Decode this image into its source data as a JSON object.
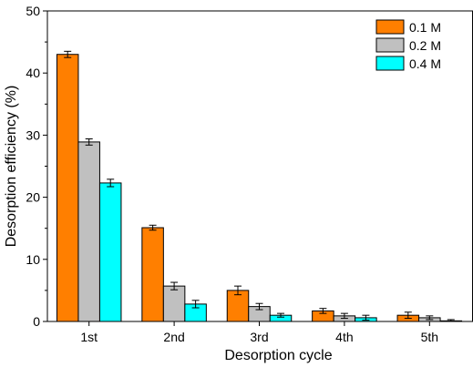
{
  "chart_data": {
    "type": "bar",
    "title": "",
    "xlabel": "Desorption cycle",
    "ylabel": "Desorption efficiency (%)",
    "categories": [
      "1st",
      "2nd",
      "3rd",
      "4th",
      "5th"
    ],
    "ylim": [
      0,
      50
    ],
    "yticks": [
      0,
      10,
      20,
      30,
      40,
      50
    ],
    "grid": false,
    "legend_position": "top-right",
    "series": [
      {
        "name": "0.1 M",
        "color": "#FF7F00",
        "values": [
          43.0,
          15.1,
          5.0,
          1.7,
          1.0
        ],
        "errors": [
          0.5,
          0.4,
          0.7,
          0.4,
          0.5
        ]
      },
      {
        "name": "0.2 M",
        "color": "#C0C0C0",
        "values": [
          28.9,
          5.7,
          2.4,
          0.9,
          0.6
        ],
        "errors": [
          0.5,
          0.6,
          0.5,
          0.4,
          0.3
        ]
      },
      {
        "name": "0.4 M",
        "color": "#00FFFF",
        "values": [
          22.3,
          2.8,
          1.0,
          0.6,
          0.1
        ],
        "errors": [
          0.6,
          0.6,
          0.3,
          0.4,
          0.2
        ]
      }
    ]
  }
}
